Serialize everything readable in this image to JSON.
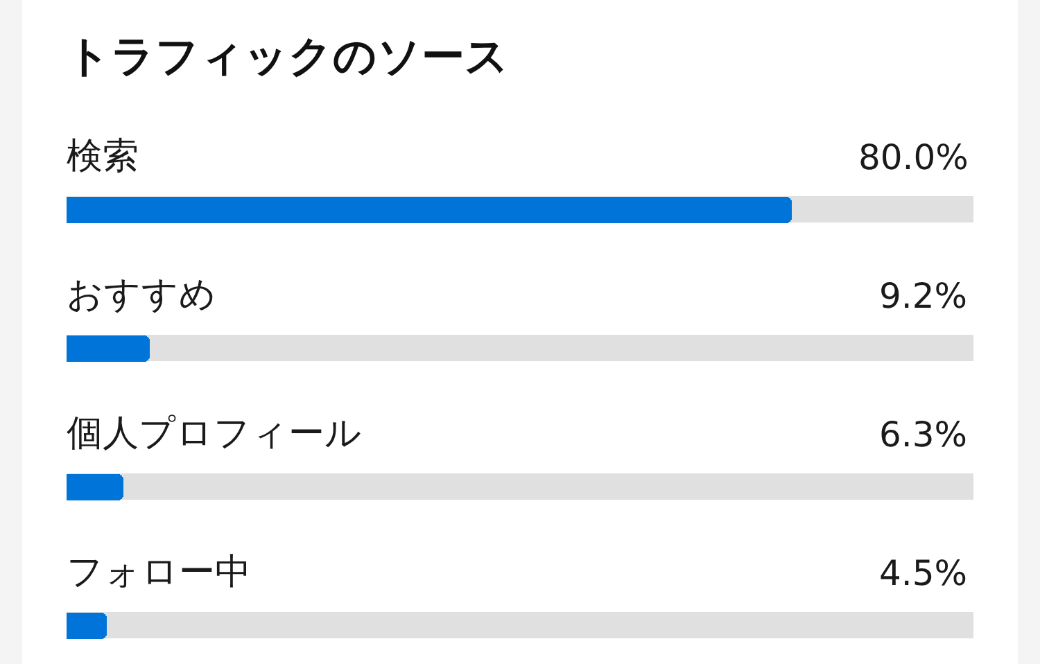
{
  "chart_data": {
    "type": "bar",
    "orientation": "horizontal",
    "title": "トラフィックのソース",
    "categories": [
      "検索",
      "おすすめ",
      "個人プロフィール",
      "フォロー中"
    ],
    "values": [
      80.0,
      9.2,
      6.3,
      4.5
    ],
    "value_labels": [
      "80.0%",
      "9.2%",
      "6.3%",
      "4.5%"
    ],
    "color": "#0074d9",
    "xlim": [
      0,
      100
    ],
    "tick_labels": false
  }
}
